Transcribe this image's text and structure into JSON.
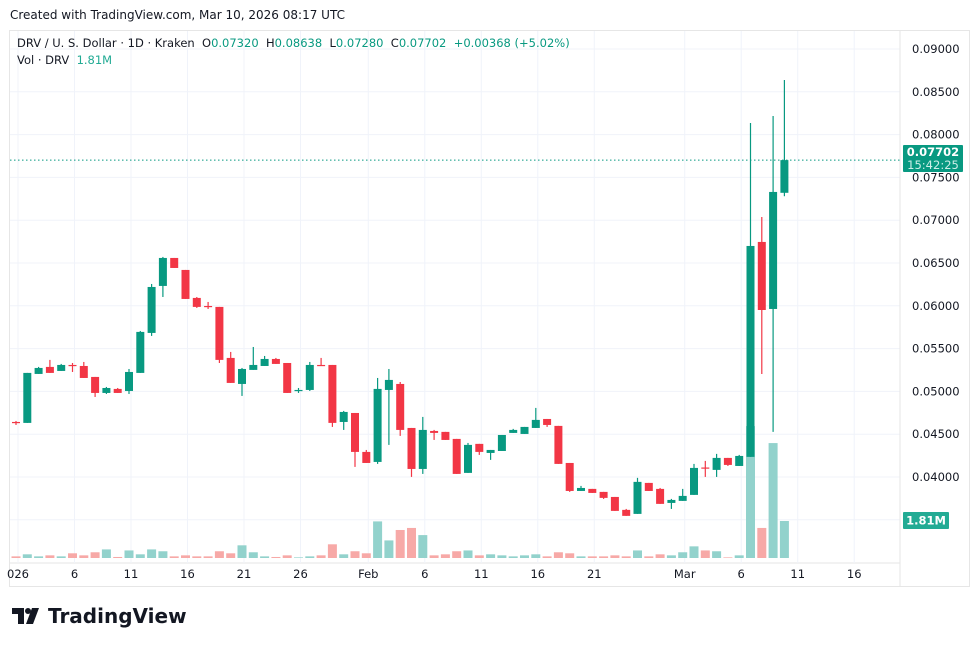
{
  "header": {
    "created": "Created with TradingView.com, Mar 10, 2026 08:17 UTC"
  },
  "legend": {
    "symbol": "DRV / U. S. Dollar · 1D · Kraken",
    "o_label": "O",
    "o": "0.07320",
    "h_label": "H",
    "h": "0.08638",
    "l_label": "L",
    "l": "0.07280",
    "c_label": "C",
    "c": "0.07702",
    "change": "+0.00368 (+5.02%)",
    "vol_label": "Vol · DRV",
    "vol": "1.81M"
  },
  "price_badge": {
    "price": "0.07702",
    "countdown": "15:42:25",
    "color": "#089981"
  },
  "volume_badge": {
    "value": "1.81M",
    "color": "#22ab94"
  },
  "logo": {
    "text": "TradingView"
  },
  "colors": {
    "up": "#089981",
    "down": "#F23645",
    "vol_up": "#92D2CC",
    "vol_down": "#F7A9A7",
    "grid": "#f0f3fa"
  },
  "chart_data": {
    "type": "candlestick",
    "title": "DRV / U. S. Dollar · 1D · Kraken",
    "ylim": [
      0.035,
      0.09
    ],
    "y_ticks": [
      "0.09000",
      "0.08500",
      "0.08000",
      "0.07500",
      "0.07000",
      "0.06500",
      "0.06000",
      "0.05500",
      "0.05000",
      "0.04500",
      "0.04000"
    ],
    "x_ticks": [
      {
        "label": "026",
        "day": 0
      },
      {
        "label": "6",
        "day": 5
      },
      {
        "label": "11",
        "day": 10
      },
      {
        "label": "16",
        "day": 15
      },
      {
        "label": "21",
        "day": 20
      },
      {
        "label": "26",
        "day": 25
      },
      {
        "label": "Feb",
        "day": 31
      },
      {
        "label": "6",
        "day": 36
      },
      {
        "label": "11",
        "day": 41
      },
      {
        "label": "16",
        "day": 46
      },
      {
        "label": "21",
        "day": 51
      },
      {
        "label": "Mar",
        "day": 59
      },
      {
        "label": "6",
        "day": 64
      },
      {
        "label": "11",
        "day": 69
      },
      {
        "label": "16",
        "day": 74
      }
    ],
    "candles": [
      [
        0.04643,
        0.04655,
        0.04608,
        0.04632,
        0.08
      ],
      [
        0.04632,
        0.05216,
        0.04632,
        0.05216,
        0.18
      ],
      [
        0.05204,
        0.05286,
        0.05204,
        0.05274,
        0.08
      ],
      [
        0.05286,
        0.05368,
        0.05216,
        0.05216,
        0.13
      ],
      [
        0.05239,
        0.05321,
        0.05239,
        0.05309,
        0.08
      ],
      [
        0.05309,
        0.05332,
        0.05227,
        0.05297,
        0.23
      ],
      [
        0.05297,
        0.05344,
        0.05157,
        0.05157,
        0.13
      ],
      [
        0.05169,
        0.05169,
        0.04935,
        0.04982,
        0.28
      ],
      [
        0.04982,
        0.05052,
        0.0497,
        0.0504,
        0.42
      ],
      [
        0.05029,
        0.0504,
        0.04982,
        0.04982,
        0.05
      ],
      [
        0.05005,
        0.05262,
        0.0497,
        0.05227,
        0.37
      ],
      [
        0.05216,
        0.05706,
        0.05216,
        0.05695,
        0.18
      ],
      [
        0.05683,
        0.06255,
        0.05648,
        0.0622,
        0.42
      ],
      [
        0.06232,
        0.06571,
        0.06103,
        0.06559,
        0.33
      ],
      [
        0.06559,
        0.06559,
        0.06442,
        0.06442,
        0.08
      ],
      [
        0.06419,
        0.06419,
        0.0608,
        0.0608,
        0.13
      ],
      [
        0.06092,
        0.06103,
        0.05975,
        0.05987,
        0.08
      ],
      [
        0.05998,
        0.06045,
        0.05963,
        0.05987,
        0.08
      ],
      [
        0.05987,
        0.05987,
        0.05332,
        0.05368,
        0.33
      ],
      [
        0.05391,
        0.05461,
        0.05099,
        0.05099,
        0.23
      ],
      [
        0.05087,
        0.05274,
        0.04947,
        0.05262,
        0.62
      ],
      [
        0.05251,
        0.05519,
        0.05251,
        0.05309,
        0.28
      ],
      [
        0.05297,
        0.05414,
        0.05297,
        0.05379,
        0.08
      ],
      [
        0.05379,
        0.05391,
        0.05321,
        0.05321,
        0.05
      ],
      [
        0.05332,
        0.05332,
        0.04982,
        0.04982,
        0.13
      ],
      [
        0.05005,
        0.0504,
        0.04982,
        0.05017,
        0.03
      ],
      [
        0.05017,
        0.05344,
        0.05005,
        0.05309,
        0.08
      ],
      [
        0.05309,
        0.05391,
        0.05297,
        0.05297,
        0.13
      ],
      [
        0.05309,
        0.05309,
        0.04585,
        0.04632,
        0.67
      ],
      [
        0.04643,
        0.04772,
        0.0455,
        0.0476,
        0.18
      ],
      [
        0.04748,
        0.04748,
        0.04118,
        0.04293,
        0.33
      ],
      [
        0.04293,
        0.04316,
        0.04164,
        0.04164,
        0.23
      ],
      [
        0.04176,
        0.05157,
        0.04153,
        0.05029,
        1.79
      ],
      [
        0.05017,
        0.05262,
        0.04375,
        0.05134,
        0.86
      ],
      [
        0.05087,
        0.0511,
        0.0448,
        0.0455,
        1.37
      ],
      [
        0.04573,
        0.04573,
        0.04001,
        0.04094,
        1.47
      ],
      [
        0.04094,
        0.04702,
        0.04036,
        0.0455,
        1.12
      ],
      [
        0.04538,
        0.0455,
        0.04433,
        0.04515,
        0.13
      ],
      [
        0.04527,
        0.04527,
        0.04433,
        0.04433,
        0.18
      ],
      [
        0.04445,
        0.04445,
        0.04036,
        0.04036,
        0.33
      ],
      [
        0.04048,
        0.04398,
        0.04048,
        0.04375,
        0.37
      ],
      [
        0.04387,
        0.04387,
        0.04258,
        0.04293,
        0.13
      ],
      [
        0.04281,
        0.04316,
        0.042,
        0.04316,
        0.18
      ],
      [
        0.04304,
        0.04491,
        0.04304,
        0.04491,
        0.13
      ],
      [
        0.04515,
        0.04562,
        0.04515,
        0.0455,
        0.08
      ],
      [
        0.04503,
        0.04585,
        0.04503,
        0.04585,
        0.13
      ],
      [
        0.04573,
        0.04807,
        0.04573,
        0.04667,
        0.18
      ],
      [
        0.04678,
        0.04678,
        0.04585,
        0.04608,
        0.08
      ],
      [
        0.04597,
        0.04597,
        0.04153,
        0.04153,
        0.28
      ],
      [
        0.04164,
        0.04164,
        0.03826,
        0.03837,
        0.23
      ],
      [
        0.03837,
        0.03896,
        0.03837,
        0.03872,
        0.08
      ],
      [
        0.03861,
        0.03861,
        0.03814,
        0.03814,
        0.08
      ],
      [
        0.03826,
        0.03826,
        0.03744,
        0.03756,
        0.08
      ],
      [
        0.03767,
        0.03767,
        0.03604,
        0.03604,
        0.13
      ],
      [
        0.03616,
        0.03627,
        0.03546,
        0.03546,
        0.08
      ],
      [
        0.03569,
        0.0399,
        0.03569,
        0.03943,
        0.37
      ],
      [
        0.03931,
        0.03931,
        0.03837,
        0.03837,
        0.08
      ],
      [
        0.03861,
        0.03872,
        0.03686,
        0.03686,
        0.18
      ],
      [
        0.03697,
        0.03744,
        0.03627,
        0.03732,
        0.13
      ],
      [
        0.03721,
        0.03861,
        0.03721,
        0.03779,
        0.28
      ],
      [
        0.03791,
        0.04153,
        0.03791,
        0.04106,
        0.57
      ],
      [
        0.04111,
        0.04188,
        0.04001,
        0.04101,
        0.37
      ],
      [
        0.04083,
        0.0427,
        0.04001,
        0.04223,
        0.33
      ],
      [
        0.04223,
        0.04223,
        0.04129,
        0.04141,
        0.03
      ],
      [
        0.04129,
        0.04258,
        0.04129,
        0.04246,
        0.13
      ],
      [
        0.04235,
        0.08136,
        0.04235,
        0.06699,
        6.45
      ],
      [
        0.06746,
        0.07038,
        0.05204,
        0.05951,
        1.47
      ],
      [
        0.05963,
        0.08217,
        0.04527,
        0.0733,
        5.62
      ],
      [
        0.0732,
        0.08638,
        0.0728,
        0.07702,
        1.81
      ]
    ],
    "candle_fields": [
      "open",
      "high",
      "low",
      "close",
      "volume_millions"
    ],
    "first_day": "Jan 1, 2026",
    "last_price": 0.07702
  }
}
